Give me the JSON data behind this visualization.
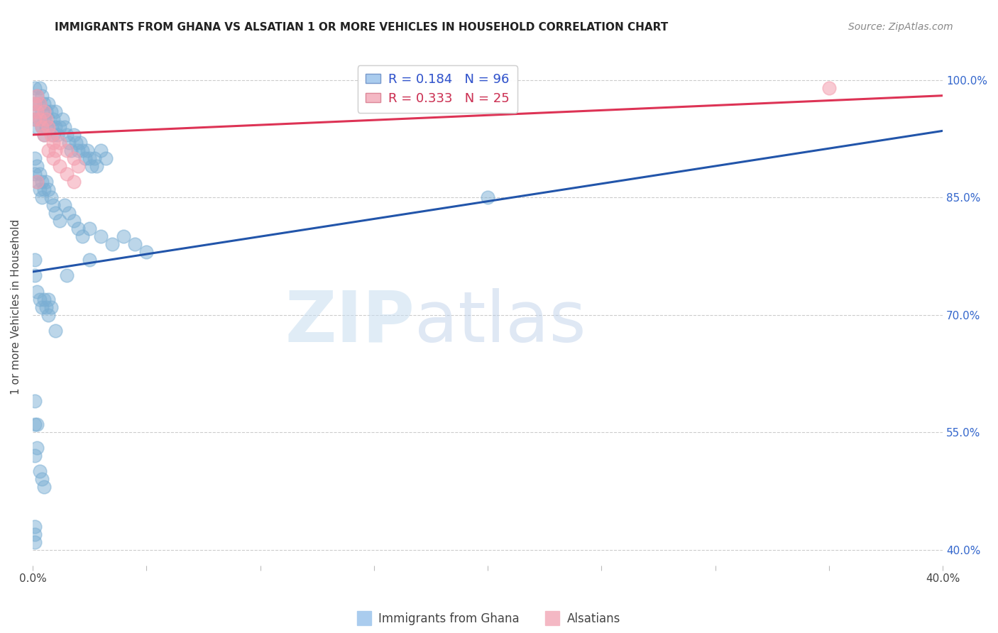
{
  "title": "IMMIGRANTS FROM GHANA VS ALSATIAN 1 OR MORE VEHICLES IN HOUSEHOLD CORRELATION CHART",
  "source": "Source: ZipAtlas.com",
  "ylabel": "1 or more Vehicles in Household",
  "xlim": [
    0.0,
    0.4
  ],
  "ylim": [
    0.38,
    1.04
  ],
  "xticks": [
    0.0,
    0.05,
    0.1,
    0.15,
    0.2,
    0.25,
    0.3,
    0.35,
    0.4
  ],
  "xtick_labels": [
    "0.0%",
    "",
    "",
    "",
    "",
    "",
    "",
    "",
    "40.0%"
  ],
  "ytick_labels": [
    "100.0%",
    "85.0%",
    "70.0%",
    "55.0%",
    "40.0%"
  ],
  "yticks": [
    1.0,
    0.85,
    0.7,
    0.55,
    0.4
  ],
  "ghana_color": "#7bafd4",
  "alsatian_color": "#f4a0b0",
  "ghana_line_color": "#2255aa",
  "alsatian_line_color": "#dd3355",
  "ghana_R": 0.184,
  "ghana_N": 96,
  "alsatian_R": 0.333,
  "alsatian_N": 25,
  "watermark_zip": "ZIP",
  "watermark_atlas": "atlas",
  "legend_labels": [
    "Immigrants from Ghana",
    "Alsatians"
  ],
  "ghana_x": [
    0.001,
    0.001,
    0.001,
    0.002,
    0.002,
    0.002,
    0.003,
    0.003,
    0.003,
    0.004,
    0.004,
    0.004,
    0.005,
    0.005,
    0.005,
    0.006,
    0.006,
    0.007,
    0.007,
    0.008,
    0.008,
    0.009,
    0.009,
    0.01,
    0.01,
    0.011,
    0.012,
    0.013,
    0.014,
    0.015,
    0.016,
    0.017,
    0.018,
    0.019,
    0.02,
    0.021,
    0.022,
    0.023,
    0.024,
    0.025,
    0.026,
    0.027,
    0.028,
    0.03,
    0.032,
    0.001,
    0.001,
    0.002,
    0.002,
    0.003,
    0.003,
    0.004,
    0.004,
    0.005,
    0.006,
    0.007,
    0.008,
    0.009,
    0.01,
    0.012,
    0.014,
    0.016,
    0.018,
    0.02,
    0.022,
    0.025,
    0.03,
    0.035,
    0.04,
    0.045,
    0.05,
    0.001,
    0.001,
    0.002,
    0.003,
    0.004,
    0.005,
    0.006,
    0.007,
    0.008,
    0.001,
    0.001,
    0.001,
    0.002,
    0.002,
    0.003,
    0.004,
    0.005,
    0.007,
    0.01,
    0.015,
    0.025,
    0.2,
    0.001,
    0.001,
    0.001
  ],
  "ghana_y": [
    0.99,
    0.97,
    0.95,
    0.98,
    0.96,
    0.94,
    0.99,
    0.97,
    0.95,
    0.98,
    0.96,
    0.94,
    0.97,
    0.95,
    0.93,
    0.96,
    0.94,
    0.97,
    0.95,
    0.96,
    0.94,
    0.95,
    0.93,
    0.96,
    0.94,
    0.93,
    0.94,
    0.95,
    0.94,
    0.93,
    0.92,
    0.91,
    0.93,
    0.92,
    0.91,
    0.92,
    0.91,
    0.9,
    0.91,
    0.9,
    0.89,
    0.9,
    0.89,
    0.91,
    0.9,
    0.9,
    0.88,
    0.89,
    0.87,
    0.88,
    0.86,
    0.87,
    0.85,
    0.86,
    0.87,
    0.86,
    0.85,
    0.84,
    0.83,
    0.82,
    0.84,
    0.83,
    0.82,
    0.81,
    0.8,
    0.81,
    0.8,
    0.79,
    0.8,
    0.79,
    0.78,
    0.77,
    0.75,
    0.73,
    0.72,
    0.71,
    0.72,
    0.71,
    0.72,
    0.71,
    0.59,
    0.56,
    0.52,
    0.56,
    0.53,
    0.5,
    0.49,
    0.48,
    0.7,
    0.68,
    0.75,
    0.77,
    0.85,
    0.43,
    0.41,
    0.42
  ],
  "alsatian_x": [
    0.001,
    0.001,
    0.002,
    0.002,
    0.003,
    0.003,
    0.004,
    0.005,
    0.006,
    0.007,
    0.008,
    0.009,
    0.01,
    0.012,
    0.015,
    0.018,
    0.02,
    0.005,
    0.007,
    0.009,
    0.012,
    0.015,
    0.018,
    0.002,
    0.35
  ],
  "alsatian_y": [
    0.97,
    0.95,
    0.98,
    0.96,
    0.97,
    0.95,
    0.94,
    0.96,
    0.95,
    0.94,
    0.93,
    0.92,
    0.91,
    0.92,
    0.91,
    0.9,
    0.89,
    0.93,
    0.91,
    0.9,
    0.89,
    0.88,
    0.87,
    0.87,
    0.99
  ]
}
